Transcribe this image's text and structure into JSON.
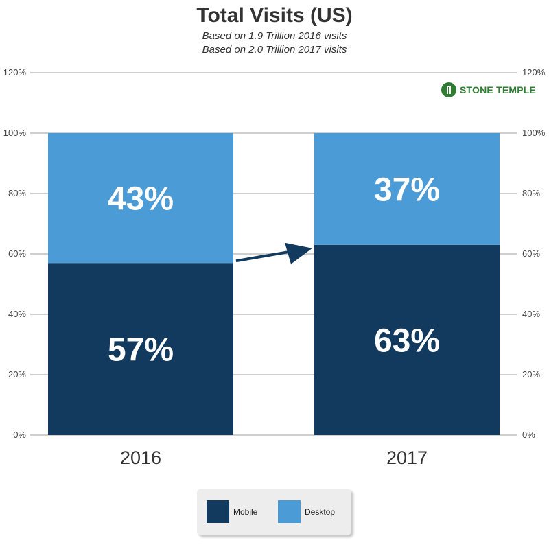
{
  "chart_data": {
    "type": "bar",
    "stacked": true,
    "title": "Total Visits (US)",
    "subtitles": [
      "Based on 1.9 Trillion 2016 visits",
      "Based on 2.0 Trillion 2017 visits"
    ],
    "categories": [
      "2016",
      "2017"
    ],
    "series": [
      {
        "name": "Mobile",
        "values": [
          57,
          63
        ],
        "color": "#123a5e"
      },
      {
        "name": "Desktop",
        "values": [
          43,
          37
        ],
        "color": "#4b9bd6"
      }
    ],
    "data_labels": [
      [
        "57%",
        "63%"
      ],
      [
        "43%",
        "37%"
      ]
    ],
    "ylim": [
      0,
      120
    ],
    "yticks": [
      "0%",
      "20%",
      "40%",
      "60%",
      "80%",
      "100%",
      "120%"
    ],
    "grid": true,
    "axes": "left and right",
    "legend_position": "bottom"
  },
  "brand": {
    "name": "STONE TEMPLE",
    "color": "#2e7d32"
  }
}
